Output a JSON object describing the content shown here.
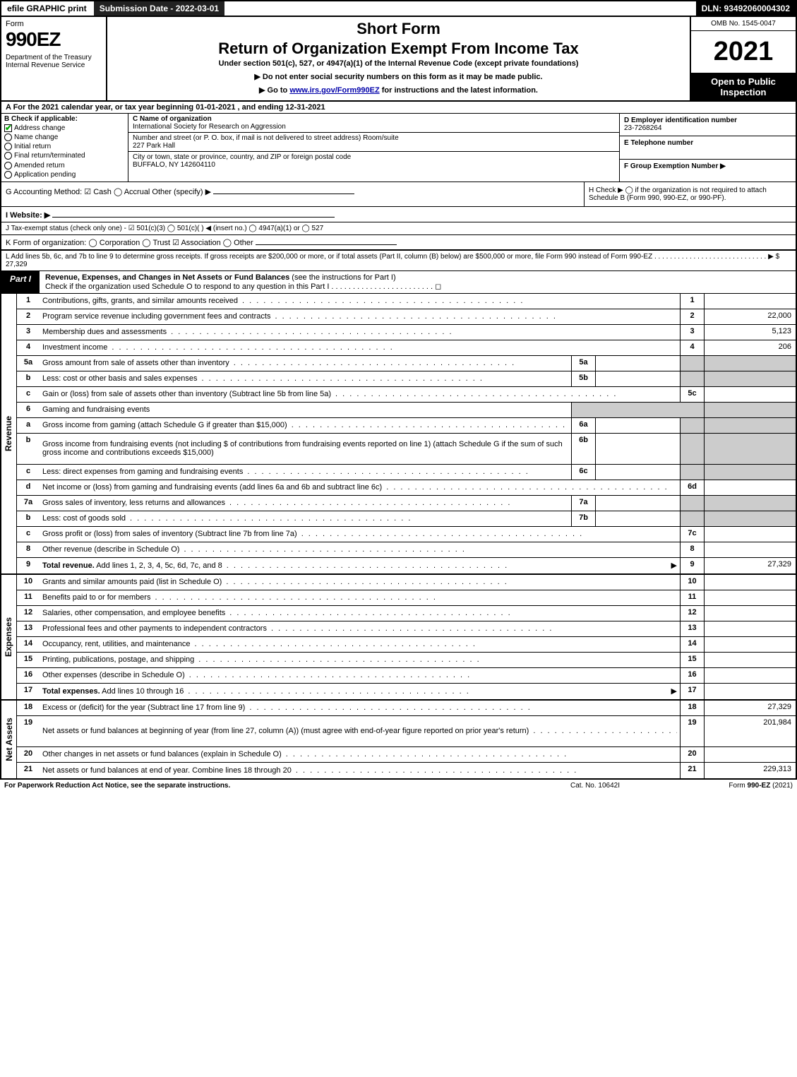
{
  "topbar": {
    "efile": "efile GRAPHIC print",
    "submission": "Submission Date - 2022-03-01",
    "dln": "DLN: 93492060004302"
  },
  "header": {
    "form_word": "Form",
    "form_no": "990EZ",
    "dept": "Department of the Treasury\nInternal Revenue Service",
    "short_form": "Short Form",
    "title": "Return of Organization Exempt From Income Tax",
    "sub": "Under section 501(c), 527, or 4947(a)(1) of the Internal Revenue Code (except private foundations)",
    "note1": "▶ Do not enter social security numbers on this form as it may be made public.",
    "note2_pre": "▶ Go to ",
    "note2_link": "www.irs.gov/Form990EZ",
    "note2_post": " for instructions and the latest information.",
    "omb": "OMB No. 1545-0047",
    "year": "2021",
    "open": "Open to Public Inspection"
  },
  "row_a": "A  For the 2021 calendar year, or tax year beginning 01-01-2021 , and ending 12-31-2021",
  "section_b": {
    "heading": "B  Check if applicable:",
    "items": [
      {
        "label": "Address change",
        "checked": true
      },
      {
        "label": "Name change",
        "checked": false
      },
      {
        "label": "Initial return",
        "checked": false
      },
      {
        "label": "Final return/terminated",
        "checked": false
      },
      {
        "label": "Amended return",
        "checked": false
      },
      {
        "label": "Application pending",
        "checked": false
      }
    ]
  },
  "section_c": {
    "name_lbl": "C Name of organization",
    "name": "International Society for Research on Aggression",
    "street_lbl": "Number and street (or P. O. box, if mail is not delivered to street address)         Room/suite",
    "street": "227 Park Hall",
    "city_lbl": "City or town, state or province, country, and ZIP or foreign postal code",
    "city": "BUFFALO, NY  142604110"
  },
  "section_def": {
    "d_lbl": "D Employer identification number",
    "d_val": "23-7268264",
    "e_lbl": "E Telephone number",
    "e_val": "",
    "f_lbl": "F Group Exemption Number   ▶",
    "f_val": ""
  },
  "row_g": {
    "left": "G Accounting Method:   ☑ Cash  ◯ Accrual   Other (specify) ▶",
    "right_h": "H   Check ▶  ◯  if the organization is not required to attach Schedule B (Form 990, 990-EZ, or 990-PF)."
  },
  "row_i": "I Website: ▶",
  "row_j": "J Tax-exempt status (check only one) -  ☑ 501(c)(3)  ◯ 501(c)(  ) ◀ (insert no.)  ◯ 4947(a)(1) or  ◯ 527",
  "row_k": "K Form of organization:   ◯ Corporation   ◯ Trust   ☑ Association   ◯ Other",
  "row_l": {
    "text": "L Add lines 5b, 6c, and 7b to line 9 to determine gross receipts. If gross receipts are $200,000 or more, or if total assets (Part II, column (B) below) are $500,000 or more, file Form 990 instead of Form 990-EZ .  .  .  .  .  .  .  .  .  .  .  .  .  .  .  .  .  .  .  .  .  .  .  .  .  .  .  .  .  ▶ $",
    "amount": "27,329"
  },
  "part1": {
    "tab": "Part I",
    "title_main": "Revenue, Expenses, and Changes in Net Assets or Fund Balances",
    "title_sub": " (see the instructions for Part I)",
    "check_line": "Check if the organization used Schedule O to respond to any question in this Part I .  .  .  .  .  .  .  .  .  .  .  .  .  .  .  .  .  .  .  .  .  .  .  .  ◻"
  },
  "revenue": {
    "side": "Revenue",
    "lines": [
      {
        "n": "1",
        "d": "Contributions, gifts, grants, and similar amounts received",
        "rn": "1",
        "rv": ""
      },
      {
        "n": "2",
        "d": "Program service revenue including government fees and contracts",
        "rn": "2",
        "rv": "22,000"
      },
      {
        "n": "3",
        "d": "Membership dues and assessments",
        "rn": "3",
        "rv": "5,123"
      },
      {
        "n": "4",
        "d": "Investment income",
        "rn": "4",
        "rv": "206"
      },
      {
        "n": "5a",
        "d": "Gross amount from sale of assets other than inventory",
        "mb": "5a",
        "mv": "",
        "shade": true
      },
      {
        "n": "b",
        "d": "Less: cost or other basis and sales expenses",
        "mb": "5b",
        "mv": "",
        "shade": true
      },
      {
        "n": "c",
        "d": "Gain or (loss) from sale of assets other than inventory (Subtract line 5b from line 5a)",
        "rn": "5c",
        "rv": ""
      },
      {
        "n": "6",
        "d": "Gaming and fundraising events",
        "noboxes": true,
        "shade": true
      },
      {
        "n": "a",
        "d": "Gross income from gaming (attach Schedule G if greater than $15,000)",
        "mb": "6a",
        "mv": "",
        "shade": true
      },
      {
        "n": "b",
        "d": "Gross income from fundraising events (not including $                           of contributions from fundraising events reported on line 1) (attach Schedule G if the sum of such gross income and contributions exceeds $15,000)",
        "mb": "6b",
        "mv": "",
        "shade": true,
        "tall": true
      },
      {
        "n": "c",
        "d": "Less: direct expenses from gaming and fundraising events",
        "mb": "6c",
        "mv": "",
        "shade": true
      },
      {
        "n": "d",
        "d": "Net income or (loss) from gaming and fundraising events (add lines 6a and 6b and subtract line 6c)",
        "rn": "6d",
        "rv": ""
      },
      {
        "n": "7a",
        "d": "Gross sales of inventory, less returns and allowances",
        "mb": "7a",
        "mv": "",
        "shade": true
      },
      {
        "n": "b",
        "d": "Less: cost of goods sold",
        "mb": "7b",
        "mv": "",
        "shade": true
      },
      {
        "n": "c",
        "d": "Gross profit or (loss) from sales of inventory (Subtract line 7b from line 7a)",
        "rn": "7c",
        "rv": ""
      },
      {
        "n": "8",
        "d": "Other revenue (describe in Schedule O)",
        "rn": "8",
        "rv": ""
      },
      {
        "n": "9",
        "d": "Total revenue. Add lines 1, 2, 3, 4, 5c, 6d, 7c, and 8",
        "rn": "9",
        "rv": "27,329",
        "bold": true,
        "arrow": true
      }
    ]
  },
  "expenses": {
    "side": "Expenses",
    "lines": [
      {
        "n": "10",
        "d": "Grants and similar amounts paid (list in Schedule O)",
        "rn": "10",
        "rv": ""
      },
      {
        "n": "11",
        "d": "Benefits paid to or for members",
        "rn": "11",
        "rv": ""
      },
      {
        "n": "12",
        "d": "Salaries, other compensation, and employee benefits",
        "rn": "12",
        "rv": ""
      },
      {
        "n": "13",
        "d": "Professional fees and other payments to independent contractors",
        "rn": "13",
        "rv": ""
      },
      {
        "n": "14",
        "d": "Occupancy, rent, utilities, and maintenance",
        "rn": "14",
        "rv": ""
      },
      {
        "n": "15",
        "d": "Printing, publications, postage, and shipping",
        "rn": "15",
        "rv": ""
      },
      {
        "n": "16",
        "d": "Other expenses (describe in Schedule O)",
        "rn": "16",
        "rv": ""
      },
      {
        "n": "17",
        "d": "Total expenses. Add lines 10 through 16",
        "rn": "17",
        "rv": "",
        "bold": true,
        "arrow": true
      }
    ]
  },
  "netassets": {
    "side": "Net Assets",
    "lines": [
      {
        "n": "18",
        "d": "Excess or (deficit) for the year (Subtract line 17 from line 9)",
        "rn": "18",
        "rv": "27,329"
      },
      {
        "n": "19",
        "d": "Net assets or fund balances at beginning of year (from line 27, column (A)) (must agree with end-of-year figure reported on prior year's return)",
        "rn": "19",
        "rv": "201,984",
        "tall": true
      },
      {
        "n": "20",
        "d": "Other changes in net assets or fund balances (explain in Schedule O)",
        "rn": "20",
        "rv": ""
      },
      {
        "n": "21",
        "d": "Net assets or fund balances at end of year. Combine lines 18 through 20",
        "rn": "21",
        "rv": "229,313"
      }
    ]
  },
  "footer": {
    "left": "For Paperwork Reduction Act Notice, see the separate instructions.",
    "mid": "Cat. No. 10642I",
    "right": "Form 990-EZ (2021)"
  },
  "colors": {
    "black": "#000000",
    "white": "#ffffff",
    "shade": "#cccccc",
    "link": "#0000aa",
    "check": "#00aa00"
  }
}
